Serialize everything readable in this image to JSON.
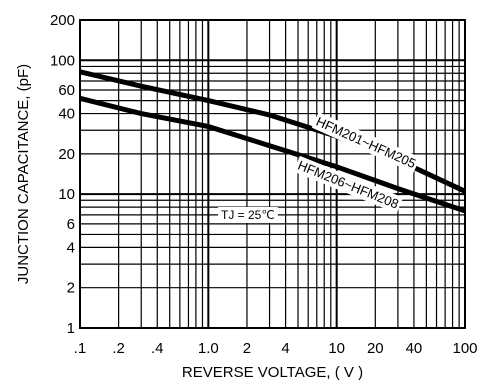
{
  "chart_data": {
    "type": "line",
    "x_scale": "log",
    "y_scale": "log",
    "xlim": [
      0.1,
      100
    ],
    "ylim": [
      1,
      200
    ],
    "xlabel": "REVERSE VOLTAGE, ( V )",
    "ylabel": "JUNCTION CAPACITANCE, (pF)",
    "x_ticks": [
      {
        "value": 0.1,
        "label": ".1"
      },
      {
        "value": 0.2,
        "label": ".2"
      },
      {
        "value": 0.4,
        "label": ".4"
      },
      {
        "value": 1,
        "label": "1.0"
      },
      {
        "value": 2,
        "label": "2"
      },
      {
        "value": 4,
        "label": "4"
      },
      {
        "value": 10,
        "label": "10"
      },
      {
        "value": 20,
        "label": "20"
      },
      {
        "value": 40,
        "label": "40"
      },
      {
        "value": 100,
        "label": "100"
      }
    ],
    "y_ticks": [
      {
        "value": 1,
        "label": "1"
      },
      {
        "value": 2,
        "label": "2"
      },
      {
        "value": 4,
        "label": "4"
      },
      {
        "value": 6,
        "label": "6"
      },
      {
        "value": 10,
        "label": "10"
      },
      {
        "value": 20,
        "label": "20"
      },
      {
        "value": 40,
        "label": "40"
      },
      {
        "value": 60,
        "label": "60"
      },
      {
        "value": 100,
        "label": "100"
      },
      {
        "value": 200,
        "label": "200"
      }
    ],
    "grid": true,
    "series": [
      {
        "name": "HFM201~HFM205",
        "x": [
          0.1,
          0.3,
          1,
          3,
          10,
          30,
          100
        ],
        "y": [
          82,
          64,
          50,
          39,
          27,
          18,
          10.5
        ]
      },
      {
        "name": "HFM206~HFM208",
        "x": [
          0.1,
          0.3,
          1,
          3,
          10,
          30,
          100
        ],
        "y": [
          52,
          40,
          32,
          23,
          16,
          11,
          7.5
        ]
      }
    ],
    "annotation": {
      "label": "TJ = 25℃"
    }
  }
}
